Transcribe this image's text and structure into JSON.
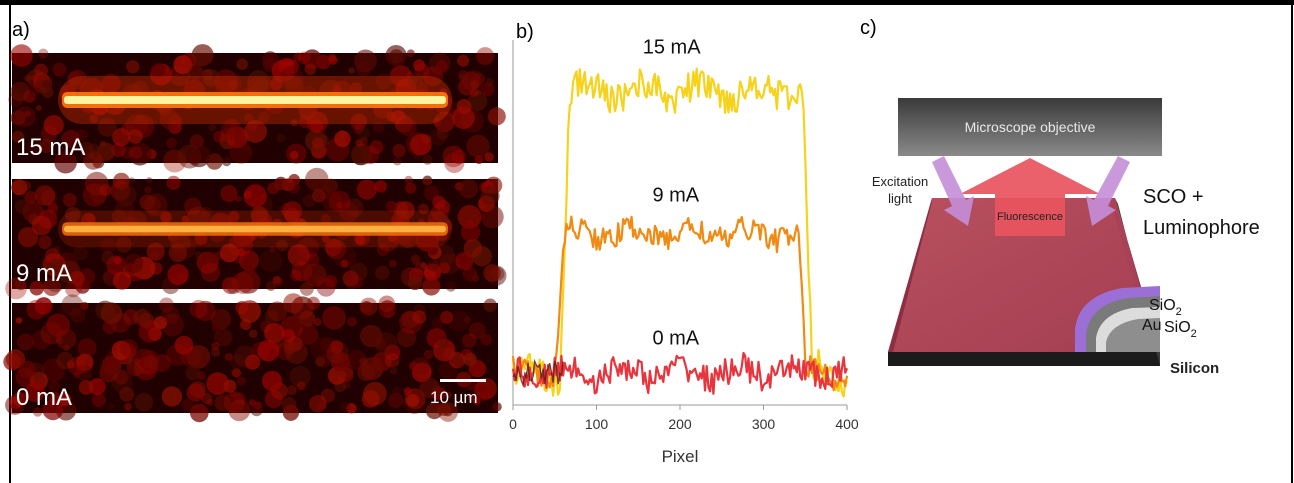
{
  "panels": {
    "a": {
      "label": "a)",
      "images": [
        {
          "current": "15 mA",
          "intensity": 1.0
        },
        {
          "current": "9 mA",
          "intensity": 0.6
        },
        {
          "current": "0 mA",
          "intensity": 0.0
        }
      ],
      "scale_bar": "10 µm"
    },
    "b": {
      "label": "b)"
    },
    "c": {
      "label": "c)"
    }
  },
  "chart_data": {
    "type": "line",
    "xlabel": "Pixel",
    "ylabel": "",
    "xlim": [
      0,
      400
    ],
    "ylim": [
      0,
      1
    ],
    "xticks": [
      "0",
      "100",
      "200",
      "300",
      "400"
    ],
    "series": [
      {
        "name": "15 mA",
        "color": "#f7d21b",
        "plateau": 0.88,
        "rise": [
          55,
          70
        ],
        "fall": [
          345,
          360
        ]
      },
      {
        "name": "9 mA",
        "color": "#f08a12",
        "plateau": 0.48,
        "rise": [
          50,
          62
        ],
        "fall": [
          340,
          352
        ]
      },
      {
        "name": "0 mA",
        "color": "#e8343c",
        "plateau": 0.09,
        "rise": [
          0,
          0
        ],
        "fall": [
          400,
          400
        ]
      }
    ],
    "background_level": 0.09,
    "grid": false
  },
  "diagram": {
    "objective": "Microscope objective",
    "excitation": [
      "Excitation",
      "light"
    ],
    "fluorescence": "Fluorescence",
    "sco": [
      "SCO +",
      "Luminophore"
    ],
    "layers": {
      "sio2_top": "SiO",
      "au": "Au",
      "sio2_bottom": "SiO",
      "sub": "2",
      "silicon": "Silicon"
    }
  }
}
